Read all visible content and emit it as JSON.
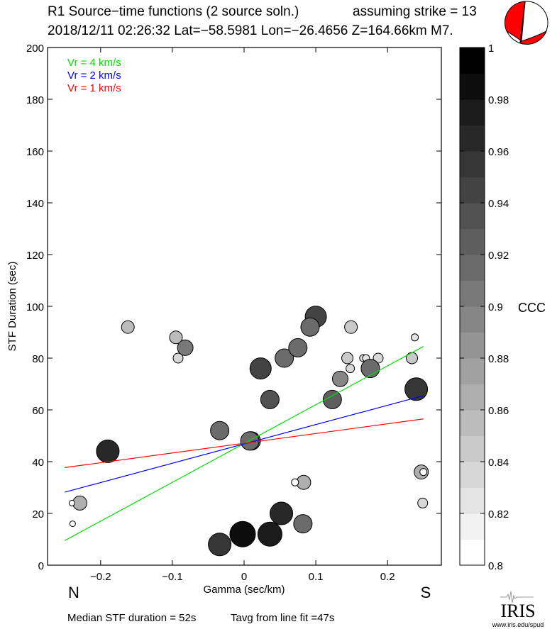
{
  "header": {
    "title_line1": "R1 Source−time functions (2 source soln.)",
    "strike_text": "assuming strike = 13",
    "title_line2": "2018/12/11 02:26:32  Lat=−58.5981 Lon=−26.4656  Z=164.66km  M7.",
    "beachball_color": "#ff0000"
  },
  "footer": {
    "median_text": "Median STF duration = 52s",
    "tavg_text": "Tavg from line fit =47s",
    "logo_text": "IRIS",
    "logo_url_text": "www.iris.edu/spud"
  },
  "chart_data": {
    "type": "scatter",
    "title": "R1 Source-time functions (2 source soln.)",
    "xlabel": "Gamma (sec/km)",
    "ylabel": "STF Duration (sec)",
    "xlim": [
      -0.274,
      0.275
    ],
    "ylim": [
      0,
      200
    ],
    "xticks": [
      -0.2,
      -0.1,
      0,
      0.1,
      0.2
    ],
    "xtick_labels": [
      "−0.2",
      "−0.1",
      "0",
      "0.1",
      "0.2"
    ],
    "yticks": [
      0,
      20,
      40,
      60,
      80,
      100,
      120,
      140,
      160,
      180,
      200
    ],
    "ytick_labels": [
      "0",
      "20",
      "40",
      "60",
      "80",
      "100",
      "120",
      "140",
      "160",
      "180",
      "200"
    ],
    "direction_labels": {
      "left": "N",
      "right": "S"
    },
    "legend": [
      {
        "label": "Vr = 4 km/s",
        "color": "#00e000"
      },
      {
        "label": "Vr = 2 km/s",
        "color": "#0000ff"
      },
      {
        "label": "Vr = 1 km/s",
        "color": "#ff0000"
      }
    ],
    "legend_position": "top-left",
    "lines": [
      {
        "name": "Vr = 4 km/s",
        "color": "#00e000",
        "x": [
          -0.25,
          0.25
        ],
        "y": [
          9.5,
          84.5
        ]
      },
      {
        "name": "Vr = 2 km/s",
        "color": "#0000ff",
        "x": [
          -0.25,
          0.25
        ],
        "y": [
          28.2,
          65.5
        ]
      },
      {
        "name": "Vr = 1 km/s",
        "color": "#ff0000",
        "x": [
          -0.25,
          0.25
        ],
        "y": [
          37.7,
          56.5
        ]
      }
    ],
    "colorbar": {
      "label": "CCC",
      "range": [
        0.8,
        1.0
      ],
      "bins": 20,
      "tick_values": [
        0.8,
        0.82,
        0.84,
        0.86,
        0.88,
        0.9,
        0.92,
        0.94,
        0.96,
        0.98,
        1
      ],
      "tick_labels": [
        "0.8",
        "0.82",
        "0.84",
        "0.86",
        "0.88",
        "0.9",
        "0.92",
        "0.94",
        "0.96",
        "0.98",
        "1"
      ]
    },
    "points": [
      {
        "x": -0.19,
        "y": 44,
        "ccc": 0.965,
        "size": 16
      },
      {
        "x": -0.229,
        "y": 24,
        "ccc": 0.865,
        "size": 10
      },
      {
        "x": -0.24,
        "y": 24,
        "ccc": 0.805,
        "size": 4
      },
      {
        "x": -0.239,
        "y": 16,
        "ccc": 0.805,
        "size": 4
      },
      {
        "x": -0.162,
        "y": 92,
        "ccc": 0.855,
        "size": 9
      },
      {
        "x": -0.095,
        "y": 88,
        "ccc": 0.855,
        "size": 9
      },
      {
        "x": -0.092,
        "y": 80,
        "ccc": 0.835,
        "size": 7
      },
      {
        "x": -0.082,
        "y": 84,
        "ccc": 0.905,
        "size": 11
      },
      {
        "x": -0.034,
        "y": 52,
        "ccc": 0.915,
        "size": 13
      },
      {
        "x": 0.01,
        "y": 48,
        "ccc": 0.925,
        "size": 13
      },
      {
        "x": 0.008,
        "y": 48,
        "ccc": 0.915,
        "size": 13
      },
      {
        "x": 0.023,
        "y": 76,
        "ccc": 0.945,
        "size": 15
      },
      {
        "x": 0.036,
        "y": 64,
        "ccc": 0.935,
        "size": 13
      },
      {
        "x": 0.056,
        "y": 80,
        "ccc": 0.915,
        "size": 13
      },
      {
        "x": 0.075,
        "y": 84,
        "ccc": 0.915,
        "size": 13
      },
      {
        "x": 0.1,
        "y": 96,
        "ccc": 0.945,
        "size": 15
      },
      {
        "x": 0.092,
        "y": 92,
        "ccc": 0.915,
        "size": 13
      },
      {
        "x": 0.123,
        "y": 64,
        "ccc": 0.925,
        "size": 13
      },
      {
        "x": 0.134,
        "y": 72,
        "ccc": 0.895,
        "size": 11
      },
      {
        "x": 0.144,
        "y": 80,
        "ccc": 0.845,
        "size": 8
      },
      {
        "x": 0.148,
        "y": 76,
        "ccc": 0.835,
        "size": 6
      },
      {
        "x": 0.149,
        "y": 92,
        "ccc": 0.845,
        "size": 9
      },
      {
        "x": 0.166,
        "y": 80,
        "ccc": 0.825,
        "size": 5
      },
      {
        "x": 0.17,
        "y": 80,
        "ccc": 0.825,
        "size": 5
      },
      {
        "x": 0.187,
        "y": 80,
        "ccc": 0.835,
        "size": 7
      },
      {
        "x": 0.176,
        "y": 76,
        "ccc": 0.915,
        "size": 13
      },
      {
        "x": 0.238,
        "y": 88,
        "ccc": 0.825,
        "size": 5
      },
      {
        "x": 0.234,
        "y": 80,
        "ccc": 0.845,
        "size": 8
      },
      {
        "x": 0.24,
        "y": 68,
        "ccc": 0.955,
        "size": 16
      },
      {
        "x": 0.247,
        "y": 36,
        "ccc": 0.865,
        "size": 10
      },
      {
        "x": 0.25,
        "y": 36,
        "ccc": 0.805,
        "size": 5
      },
      {
        "x": 0.249,
        "y": 24,
        "ccc": 0.835,
        "size": 7
      },
      {
        "x": -0.034,
        "y": 8,
        "ccc": 0.955,
        "size": 16
      },
      {
        "x": -0.002,
        "y": 12,
        "ccc": 0.985,
        "size": 18
      },
      {
        "x": 0.036,
        "y": 12,
        "ccc": 0.975,
        "size": 17
      },
      {
        "x": 0.052,
        "y": 20,
        "ccc": 0.965,
        "size": 16
      },
      {
        "x": 0.082,
        "y": 16,
        "ccc": 0.915,
        "size": 13
      },
      {
        "x": 0.083,
        "y": 32,
        "ccc": 0.865,
        "size": 10
      },
      {
        "x": 0.071,
        "y": 32,
        "ccc": 0.805,
        "size": 5
      }
    ]
  }
}
